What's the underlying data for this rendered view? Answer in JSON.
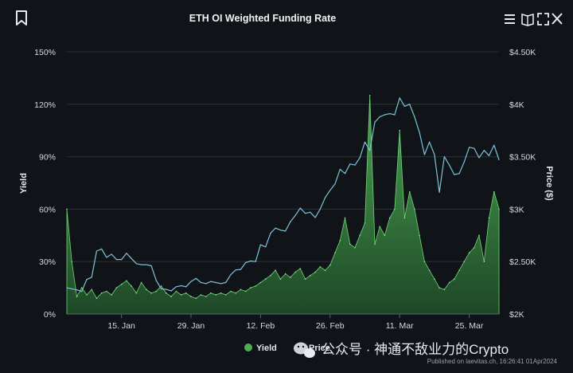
{
  "header": {
    "title": "ETH OI Weighted Funding Rate"
  },
  "icons": {
    "bookmark": "bookmark-icon",
    "menu": "menu-icon",
    "book": "book-icon",
    "fullscreen": "fullscreen-icon",
    "close": "close-icon"
  },
  "colors": {
    "background": "#101418",
    "yield": "#4fae55",
    "price": "#7cc3d9",
    "grid": "#2a3036"
  },
  "footer": {
    "watermark": "公众号 · 神通不敌业力的Crypto",
    "credit": "Published on laevitas.ch, 16:26:41 01Apr2024"
  },
  "chart_data": {
    "type": "area",
    "title": "ETH OI Weighted Funding Rate",
    "x_range": [
      "2024-01-04",
      "2024-03-31"
    ],
    "x_ticks": [
      "15. Jan",
      "29. Jan",
      "12. Feb",
      "26. Feb",
      "11. Mar",
      "25. Mar"
    ],
    "y_left": {
      "label": "Yield",
      "min": 0,
      "max": 150,
      "unit": "%",
      "ticks": [
        "0%",
        "30%",
        "60%",
        "90%",
        "120%",
        "150%"
      ]
    },
    "y_right": {
      "label": "Price ($)",
      "min": 2000,
      "max": 4500,
      "ticks": [
        "$2K",
        "$2.50K",
        "$3K",
        "$3.50K",
        "$4K",
        "$4.50K"
      ]
    },
    "grid": true,
    "legend_position": "bottom-center",
    "series": [
      {
        "name": "Yield",
        "type": "area",
        "axis": "left",
        "points": [
          [
            "2024-01-04",
            60
          ],
          [
            "2024-01-05",
            30
          ],
          [
            "2024-01-06",
            10
          ],
          [
            "2024-01-07",
            15
          ],
          [
            "2024-01-08",
            11
          ],
          [
            "2024-01-09",
            14
          ],
          [
            "2024-01-10",
            9
          ],
          [
            "2024-01-11",
            12
          ],
          [
            "2024-01-12",
            13
          ],
          [
            "2024-01-13",
            11
          ],
          [
            "2024-01-14",
            15
          ],
          [
            "2024-01-15",
            17
          ],
          [
            "2024-01-16",
            19
          ],
          [
            "2024-01-17",
            16
          ],
          [
            "2024-01-18",
            12
          ],
          [
            "2024-01-19",
            18
          ],
          [
            "2024-01-20",
            14
          ],
          [
            "2024-01-21",
            12
          ],
          [
            "2024-01-22",
            13
          ],
          [
            "2024-01-23",
            16
          ],
          [
            "2024-01-24",
            12
          ],
          [
            "2024-01-25",
            10
          ],
          [
            "2024-01-26",
            13
          ],
          [
            "2024-01-27",
            11
          ],
          [
            "2024-01-28",
            12
          ],
          [
            "2024-01-29",
            10
          ],
          [
            "2024-01-30",
            9
          ],
          [
            "2024-01-31",
            11
          ],
          [
            "2024-02-01",
            10
          ],
          [
            "2024-02-02",
            12
          ],
          [
            "2024-02-03",
            11
          ],
          [
            "2024-02-04",
            12
          ],
          [
            "2024-02-05",
            11
          ],
          [
            "2024-02-06",
            13
          ],
          [
            "2024-02-07",
            12
          ],
          [
            "2024-02-08",
            14
          ],
          [
            "2024-02-09",
            13
          ],
          [
            "2024-02-10",
            15
          ],
          [
            "2024-02-11",
            16
          ],
          [
            "2024-02-12",
            18
          ],
          [
            "2024-02-13",
            20
          ],
          [
            "2024-02-14",
            22
          ],
          [
            "2024-02-15",
            25
          ],
          [
            "2024-02-16",
            20
          ],
          [
            "2024-02-17",
            23
          ],
          [
            "2024-02-18",
            21
          ],
          [
            "2024-02-19",
            24
          ],
          [
            "2024-02-20",
            26
          ],
          [
            "2024-02-21",
            20
          ],
          [
            "2024-02-22",
            22
          ],
          [
            "2024-02-23",
            24
          ],
          [
            "2024-02-24",
            27
          ],
          [
            "2024-02-25",
            25
          ],
          [
            "2024-02-26",
            28
          ],
          [
            "2024-02-27",
            35
          ],
          [
            "2024-02-28",
            42
          ],
          [
            "2024-02-29",
            55
          ],
          [
            "2024-03-01",
            40
          ],
          [
            "2024-03-02",
            38
          ],
          [
            "2024-03-03",
            45
          ],
          [
            "2024-03-04",
            52
          ],
          [
            "2024-03-05",
            125
          ],
          [
            "2024-03-06",
            40
          ],
          [
            "2024-03-07",
            50
          ],
          [
            "2024-03-08",
            45
          ],
          [
            "2024-03-09",
            55
          ],
          [
            "2024-03-10",
            60
          ],
          [
            "2024-03-11",
            105
          ],
          [
            "2024-03-12",
            55
          ],
          [
            "2024-03-13",
            70
          ],
          [
            "2024-03-14",
            60
          ],
          [
            "2024-03-15",
            45
          ],
          [
            "2024-03-16",
            30
          ],
          [
            "2024-03-17",
            25
          ],
          [
            "2024-03-18",
            20
          ],
          [
            "2024-03-19",
            15
          ],
          [
            "2024-03-20",
            14
          ],
          [
            "2024-03-21",
            18
          ],
          [
            "2024-03-22",
            20
          ],
          [
            "2024-03-23",
            25
          ],
          [
            "2024-03-24",
            30
          ],
          [
            "2024-03-25",
            35
          ],
          [
            "2024-03-26",
            38
          ],
          [
            "2024-03-27",
            45
          ],
          [
            "2024-03-28",
            30
          ],
          [
            "2024-03-29",
            55
          ],
          [
            "2024-03-30",
            70
          ],
          [
            "2024-03-31",
            60
          ]
        ]
      },
      {
        "name": "Price",
        "type": "line",
        "axis": "right",
        "points": [
          [
            "2024-01-04",
            2250
          ],
          [
            "2024-01-05",
            2240
          ],
          [
            "2024-01-06",
            2230
          ],
          [
            "2024-01-07",
            2215
          ],
          [
            "2024-01-08",
            2330
          ],
          [
            "2024-01-09",
            2350
          ],
          [
            "2024-01-10",
            2600
          ],
          [
            "2024-01-11",
            2620
          ],
          [
            "2024-01-12",
            2540
          ],
          [
            "2024-01-13",
            2570
          ],
          [
            "2024-01-14",
            2520
          ],
          [
            "2024-01-15",
            2520
          ],
          [
            "2024-01-16",
            2580
          ],
          [
            "2024-01-17",
            2530
          ],
          [
            "2024-01-18",
            2480
          ],
          [
            "2024-01-19",
            2470
          ],
          [
            "2024-01-20",
            2470
          ],
          [
            "2024-01-21",
            2460
          ],
          [
            "2024-01-22",
            2320
          ],
          [
            "2024-01-23",
            2240
          ],
          [
            "2024-01-24",
            2235
          ],
          [
            "2024-01-25",
            2220
          ],
          [
            "2024-01-26",
            2260
          ],
          [
            "2024-01-27",
            2270
          ],
          [
            "2024-01-28",
            2260
          ],
          [
            "2024-01-29",
            2310
          ],
          [
            "2024-01-30",
            2340
          ],
          [
            "2024-01-31",
            2300
          ],
          [
            "2024-02-01",
            2290
          ],
          [
            "2024-02-02",
            2310
          ],
          [
            "2024-02-03",
            2300
          ],
          [
            "2024-02-04",
            2290
          ],
          [
            "2024-02-05",
            2300
          ],
          [
            "2024-02-06",
            2375
          ],
          [
            "2024-02-07",
            2420
          ],
          [
            "2024-02-08",
            2425
          ],
          [
            "2024-02-09",
            2490
          ],
          [
            "2024-02-10",
            2505
          ],
          [
            "2024-02-11",
            2500
          ],
          [
            "2024-02-12",
            2660
          ],
          [
            "2024-02-13",
            2640
          ],
          [
            "2024-02-14",
            2770
          ],
          [
            "2024-02-15",
            2820
          ],
          [
            "2024-02-16",
            2800
          ],
          [
            "2024-02-17",
            2790
          ],
          [
            "2024-02-18",
            2880
          ],
          [
            "2024-02-19",
            2940
          ],
          [
            "2024-02-20",
            3010
          ],
          [
            "2024-02-21",
            2960
          ],
          [
            "2024-02-22",
            2970
          ],
          [
            "2024-02-23",
            2920
          ],
          [
            "2024-02-24",
            3000
          ],
          [
            "2024-02-25",
            3110
          ],
          [
            "2024-02-26",
            3180
          ],
          [
            "2024-02-27",
            3240
          ],
          [
            "2024-02-28",
            3380
          ],
          [
            "2024-02-29",
            3340
          ],
          [
            "2024-03-01",
            3430
          ],
          [
            "2024-03-02",
            3420
          ],
          [
            "2024-03-03",
            3490
          ],
          [
            "2024-03-04",
            3640
          ],
          [
            "2024-03-05",
            3560
          ],
          [
            "2024-03-06",
            3830
          ],
          [
            "2024-03-07",
            3880
          ],
          [
            "2024-03-08",
            3900
          ],
          [
            "2024-03-09",
            3910
          ],
          [
            "2024-03-10",
            3900
          ],
          [
            "2024-03-11",
            4060
          ],
          [
            "2024-03-12",
            3980
          ],
          [
            "2024-03-13",
            4000
          ],
          [
            "2024-03-14",
            3880
          ],
          [
            "2024-03-15",
            3730
          ],
          [
            "2024-03-16",
            3520
          ],
          [
            "2024-03-17",
            3640
          ],
          [
            "2024-03-18",
            3520
          ],
          [
            "2024-03-19",
            3160
          ],
          [
            "2024-03-20",
            3500
          ],
          [
            "2024-03-21",
            3420
          ],
          [
            "2024-03-22",
            3330
          ],
          [
            "2024-03-23",
            3340
          ],
          [
            "2024-03-24",
            3450
          ],
          [
            "2024-03-25",
            3590
          ],
          [
            "2024-03-26",
            3580
          ],
          [
            "2024-03-27",
            3490
          ],
          [
            "2024-03-28",
            3560
          ],
          [
            "2024-03-29",
            3510
          ],
          [
            "2024-03-30",
            3610
          ],
          [
            "2024-03-31",
            3470
          ]
        ]
      }
    ]
  }
}
